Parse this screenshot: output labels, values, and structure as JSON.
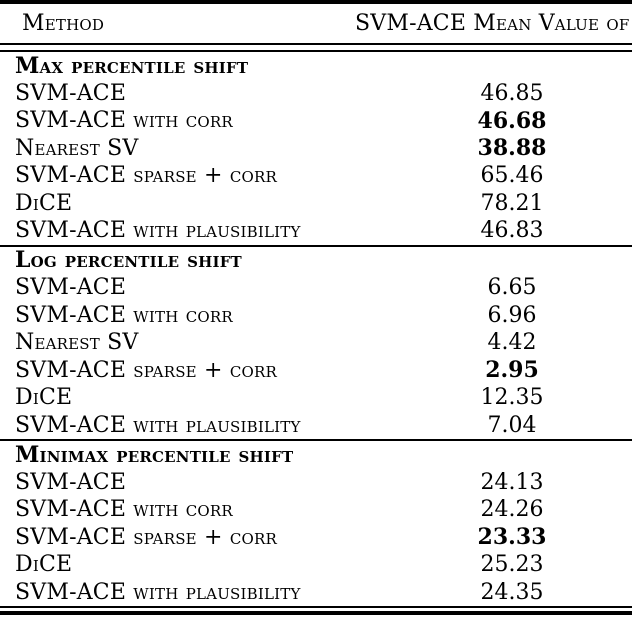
{
  "table": {
    "header": {
      "method_label": "Method",
      "value_label": "SVM-ACE Mean Value of"
    },
    "sections": [
      {
        "title": "Max percentile shift",
        "rows": [
          {
            "method": "SVM-ACE",
            "value": "46.85",
            "bold": false
          },
          {
            "method": "SVM-ACE with corr",
            "value": "46.68",
            "bold": true
          },
          {
            "method": "Nearest SV",
            "value": "38.88",
            "bold": true
          },
          {
            "method": "SVM-ACE sparse + corr",
            "value": "65.46",
            "bold": false
          },
          {
            "method": "DiCE",
            "value": "78.21",
            "bold": false
          },
          {
            "method": "SVM-ACE with plausibility",
            "value": "46.83",
            "bold": false
          }
        ]
      },
      {
        "title": "Log percentile shift",
        "rows": [
          {
            "method": "SVM-ACE",
            "value": "6.65",
            "bold": false
          },
          {
            "method": "SVM-ACE with corr",
            "value": "6.96",
            "bold": false
          },
          {
            "method": "Nearest SV",
            "value": "4.42",
            "bold": false
          },
          {
            "method": "SVM-ACE sparse + corr",
            "value": "2.95",
            "bold": true
          },
          {
            "method": "DiCE",
            "value": "12.35",
            "bold": false
          },
          {
            "method": "SVM-ACE with plausibility",
            "value": "7.04",
            "bold": false
          }
        ]
      },
      {
        "title": "Minimax percentile shift",
        "rows": [
          {
            "method": "SVM-ACE",
            "value": "24.13",
            "bold": false
          },
          {
            "method": "SVM-ACE with corr",
            "value": "24.26",
            "bold": false
          },
          {
            "method": "SVM-ACE sparse + corr",
            "value": "23.33",
            "bold": true
          },
          {
            "method": "DiCE",
            "value": "25.23",
            "bold": false
          },
          {
            "method": "SVM-ACE with plausibility",
            "value": "24.35",
            "bold": false
          }
        ]
      }
    ]
  }
}
